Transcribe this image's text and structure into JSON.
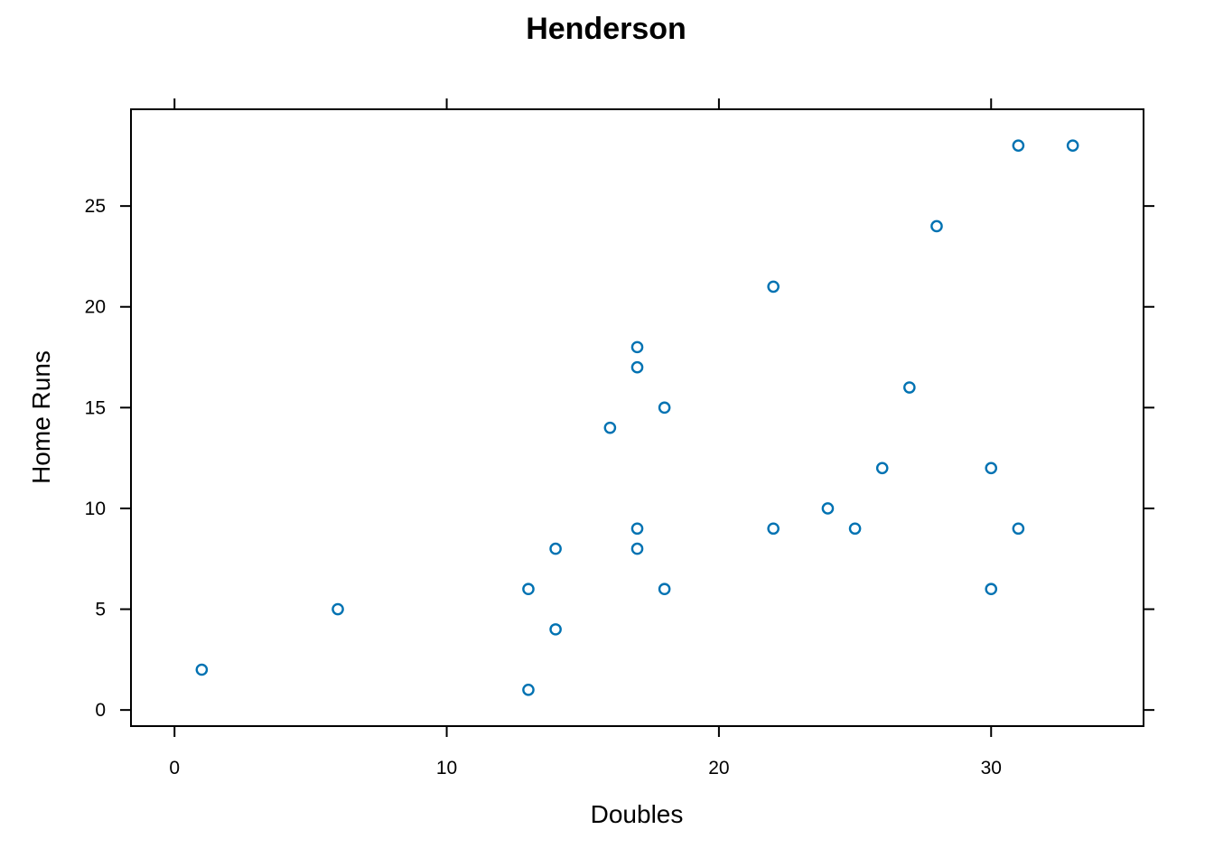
{
  "chart_data": {
    "type": "scatter",
    "title": "Henderson",
    "xlabel": "Doubles",
    "ylabel": "Home Runs",
    "xlim": [
      -1.6,
      35.6
    ],
    "ylim": [
      -0.8,
      29.8
    ],
    "xticks": [
      0,
      10,
      20,
      30
    ],
    "yticks": [
      0,
      5,
      10,
      15,
      20,
      25
    ],
    "grid": false,
    "point_color": "#0072B2",
    "series": [
      {
        "x": [
          1,
          6,
          13,
          13,
          14,
          14,
          16,
          17,
          17,
          17,
          17,
          18,
          18,
          22,
          22,
          24,
          25,
          26,
          27,
          28,
          30,
          30,
          31,
          31,
          33
        ],
        "y": [
          2,
          5,
          1,
          6,
          4,
          8,
          14,
          8,
          9,
          17,
          18,
          6,
          15,
          9,
          21,
          10,
          9,
          12,
          16,
          24,
          6,
          12,
          9,
          28,
          28
        ]
      }
    ]
  }
}
